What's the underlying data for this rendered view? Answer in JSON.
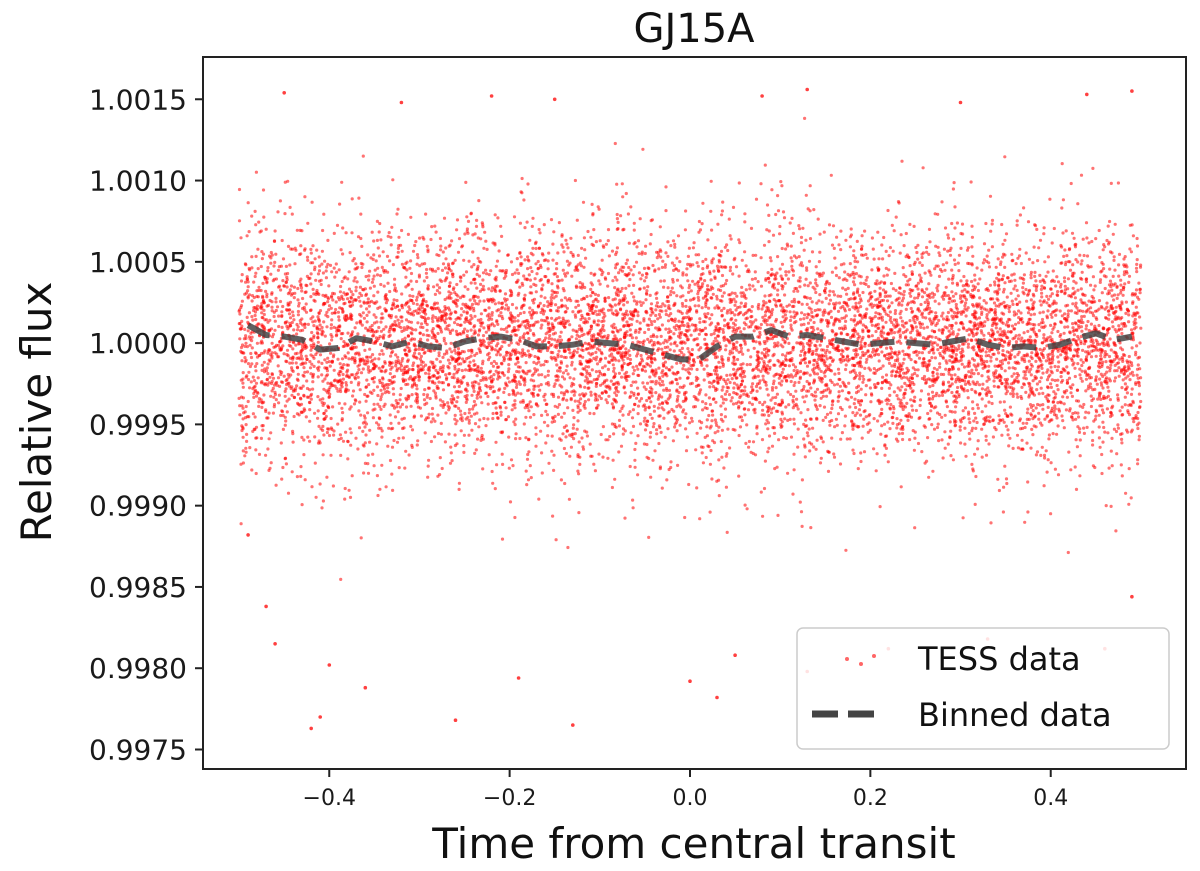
{
  "chart_data": {
    "type": "scatter",
    "title": "GJ15A",
    "xlabel": "Time from central transit",
    "ylabel": "Relative flux",
    "xlim": [
      -0.54,
      0.55
    ],
    "ylim": [
      0.99738,
      1.00176
    ],
    "x_ticks": [
      -0.4,
      -0.2,
      0.0,
      0.2,
      0.4
    ],
    "x_tick_labels": [
      "−0.4",
      "−0.2",
      "0.0",
      "0.2",
      "0.4"
    ],
    "y_ticks": [
      0.9975,
      0.998,
      0.9985,
      0.999,
      0.9995,
      1.0,
      1.0005,
      1.001,
      1.0015
    ],
    "y_tick_labels": [
      "0.9975",
      "0.9980",
      "0.9985",
      "0.9990",
      "0.9995",
      "1.0000",
      "1.0005",
      "1.0010",
      "1.0015"
    ],
    "grid": false,
    "legend_position": "lower-right",
    "series": [
      {
        "name": "TESS data",
        "kind": "scatter",
        "color": "#ff0000",
        "x_range": [
          -0.5,
          0.5
        ],
        "center": 1.0,
        "scatter_sigma": 0.00035,
        "approx_point_count": 9000,
        "outlier_points": [
          [
            -0.49,
            0.99882
          ],
          [
            -0.47,
            0.99838
          ],
          [
            -0.46,
            0.99815
          ],
          [
            -0.41,
            0.9977
          ],
          [
            -0.42,
            0.99763
          ],
          [
            -0.4,
            0.99802
          ],
          [
            -0.36,
            0.99788
          ],
          [
            -0.26,
            0.99768
          ],
          [
            -0.13,
            0.99765
          ],
          [
            -0.19,
            0.99794
          ],
          [
            0.0,
            0.99792
          ],
          [
            0.03,
            0.99782
          ],
          [
            0.05,
            0.99808
          ],
          [
            0.13,
            0.99798
          ],
          [
            0.22,
            0.99812
          ],
          [
            0.33,
            0.99818
          ],
          [
            0.46,
            0.99812
          ],
          [
            0.49,
            0.99844
          ],
          [
            -0.45,
            1.00154
          ],
          [
            -0.32,
            1.00148
          ],
          [
            -0.22,
            1.00152
          ],
          [
            -0.15,
            1.0015
          ],
          [
            0.08,
            1.00152
          ],
          [
            0.13,
            1.00156
          ],
          [
            0.3,
            1.00148
          ],
          [
            0.44,
            1.00153
          ],
          [
            0.49,
            1.00155
          ]
        ]
      },
      {
        "name": "Binned data",
        "kind": "line",
        "style": "dashed",
        "color": "#444444",
        "x": [
          -0.49,
          -0.47,
          -0.45,
          -0.43,
          -0.41,
          -0.39,
          -0.37,
          -0.35,
          -0.33,
          -0.31,
          -0.29,
          -0.27,
          -0.25,
          -0.23,
          -0.21,
          -0.19,
          -0.17,
          -0.15,
          -0.13,
          -0.11,
          -0.09,
          -0.07,
          -0.05,
          -0.03,
          -0.01,
          0.01,
          0.03,
          0.05,
          0.07,
          0.09,
          0.11,
          0.13,
          0.15,
          0.17,
          0.19,
          0.21,
          0.23,
          0.25,
          0.27,
          0.29,
          0.31,
          0.33,
          0.35,
          0.37,
          0.39,
          0.41,
          0.43,
          0.45,
          0.47,
          0.49
        ],
        "y": [
          1.00011,
          1.00005,
          1.00004,
          1.00002,
          0.99996,
          0.99997,
          1.00003,
          1.00001,
          0.99998,
          1.00001,
          0.99998,
          0.99997,
          1.00001,
          1.00003,
          1.00004,
          1.00002,
          0.99998,
          0.99998,
          0.99999,
          1.00001,
          1.0,
          0.99999,
          0.99996,
          0.99993,
          0.9999,
          0.9999,
          0.99998,
          1.00004,
          1.00004,
          1.00008,
          1.00004,
          1.00005,
          1.00003,
          1.00001,
          0.99999,
          1.0,
          1.00001,
          1.0,
          0.99999,
          1.00001,
          1.00003,
          0.99999,
          0.99997,
          0.99998,
          0.99997,
          0.99999,
          1.00003,
          1.00006,
          1.00002,
          1.00004
        ]
      }
    ]
  }
}
